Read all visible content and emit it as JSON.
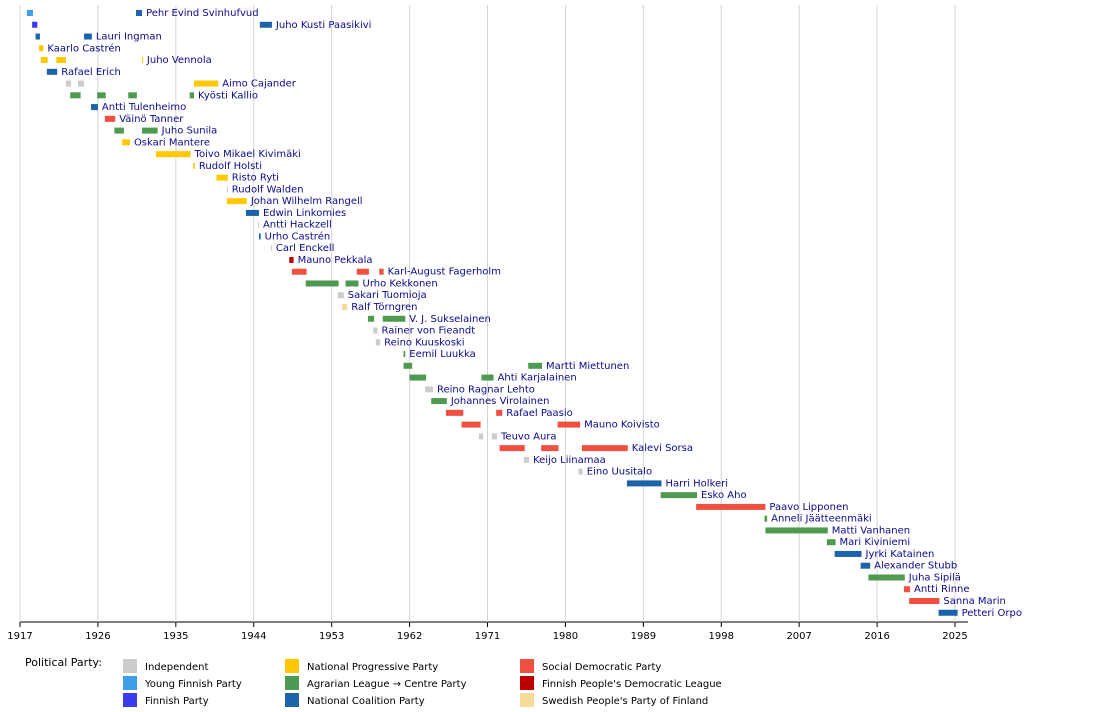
{
  "chart_data": {
    "type": "timeline",
    "xlim": [
      1917,
      2026.5
    ],
    "xticks": [
      1917,
      1926,
      1935,
      1944,
      1953,
      1962,
      1971,
      1980,
      1989,
      1998,
      2007,
      2016,
      2025
    ],
    "grid": true,
    "legend_title": "Political Party:",
    "parties": [
      {
        "name": "Independent",
        "color": "#cccccc"
      },
      {
        "name": "Young Finnish Party",
        "color": "#3d9ee9"
      },
      {
        "name": "Finnish Party",
        "color": "#3a3aee"
      },
      {
        "name": "National Progressive Party",
        "color": "#ffc800"
      },
      {
        "name": "Agrarian League → Centre Party",
        "color": "#4e9a50"
      },
      {
        "name": "National Coalition Party",
        "color": "#1c64aa"
      },
      {
        "name": "Social Democratic Party",
        "color": "#f05040"
      },
      {
        "name": "Finnish People's Democratic League",
        "color": "#bb0000"
      },
      {
        "name": "Swedish People's Party of Finland",
        "color": "#f6dc98"
      }
    ],
    "rows": [
      {
        "name": "Pehr Evind Svinhufvud",
        "terms": [
          [
            1917.8,
            1918.5,
            1
          ],
          [
            1930.4,
            1931.1,
            5
          ]
        ]
      },
      {
        "name": "Juho Kusti Paasikivi",
        "terms": [
          [
            1918.4,
            1919.0,
            2
          ],
          [
            1944.7,
            1946.1,
            5
          ]
        ]
      },
      {
        "name": "Lauri Ingman",
        "terms": [
          [
            1918.8,
            1919.3,
            5
          ],
          [
            1924.4,
            1925.3,
            5
          ]
        ]
      },
      {
        "name": "Kaarlo Castrén",
        "terms": [
          [
            1919.2,
            1919.7,
            3
          ]
        ]
      },
      {
        "name": "Juho Vennola",
        "terms": [
          [
            1919.4,
            1920.2,
            3
          ],
          [
            1921.2,
            1922.3,
            3
          ],
          [
            1931.1,
            1931.2,
            3
          ]
        ]
      },
      {
        "name": "Rafael Erich",
        "terms": [
          [
            1920.1,
            1921.3,
            5
          ]
        ]
      },
      {
        "name": "Aimo Cajander",
        "terms": [
          [
            1922.3,
            1922.9,
            0
          ],
          [
            1923.7,
            1924.4,
            0
          ],
          [
            1937.1,
            1939.9,
            3
          ]
        ]
      },
      {
        "name": "Kyösti Kallio",
        "terms": [
          [
            1922.8,
            1924.0,
            4
          ],
          [
            1925.9,
            1926.9,
            4
          ],
          [
            1929.5,
            1930.5,
            4
          ],
          [
            1936.6,
            1937.1,
            4
          ]
        ]
      },
      {
        "name": "Antti Tulenheimo",
        "terms": [
          [
            1925.2,
            1926.0,
            5
          ]
        ]
      },
      {
        "name": "Väinö Tanner",
        "terms": [
          [
            1926.8,
            1928.0,
            6
          ]
        ]
      },
      {
        "name": "Juho Sunila",
        "terms": [
          [
            1927.9,
            1929.0,
            4
          ],
          [
            1931.1,
            1932.9,
            4
          ]
        ]
      },
      {
        "name": "Oskari Mantere",
        "terms": [
          [
            1928.8,
            1929.7,
            3
          ]
        ]
      },
      {
        "name": "Toivo Mikael Kivimäki",
        "terms": [
          [
            1932.7,
            1936.7,
            3
          ]
        ]
      },
      {
        "name": "Rudolf Holsti",
        "terms": [
          [
            1937.0,
            1937.2,
            3
          ]
        ]
      },
      {
        "name": "Risto Ryti",
        "terms": [
          [
            1939.7,
            1941.0,
            3
          ]
        ]
      },
      {
        "name": "Rudolf Walden",
        "terms": [
          [
            1940.9,
            1941.0,
            0
          ]
        ]
      },
      {
        "name": "Johan Wilhelm Rangell",
        "terms": [
          [
            1940.9,
            1943.2,
            3
          ]
        ]
      },
      {
        "name": "Edwin Linkomies",
        "terms": [
          [
            1943.1,
            1944.6,
            5
          ]
        ]
      },
      {
        "name": "Antti Hackzell",
        "terms": [
          [
            1944.5,
            1944.6,
            0
          ]
        ]
      },
      {
        "name": "Urho Castrén",
        "terms": [
          [
            1944.6,
            1944.8,
            5
          ]
        ]
      },
      {
        "name": "Carl Enckell",
        "terms": [
          [
            1946.0,
            1946.1,
            0
          ]
        ]
      },
      {
        "name": "Mauno Pekkala",
        "terms": [
          [
            1948.1,
            1948.6,
            7
          ]
        ]
      },
      {
        "name": "Karl-August Fagerholm",
        "terms": [
          [
            1948.4,
            1950.1,
            6
          ],
          [
            1955.9,
            1957.3,
            6
          ],
          [
            1958.5,
            1959.0,
            6
          ]
        ]
      },
      {
        "name": "Urho Kekkonen",
        "terms": [
          [
            1950.0,
            1953.8,
            4
          ],
          [
            1954.6,
            1956.1,
            4
          ]
        ]
      },
      {
        "name": "Sakari Tuomioja",
        "terms": [
          [
            1953.7,
            1954.4,
            0
          ]
        ]
      },
      {
        "name": "Ralf Törngren",
        "terms": [
          [
            1954.2,
            1954.8,
            8
          ]
        ]
      },
      {
        "name": "V. J. Sukselainen",
        "terms": [
          [
            1957.2,
            1957.9,
            4
          ],
          [
            1958.9,
            1961.5,
            4
          ]
        ]
      },
      {
        "name": "Rainer von Fieandt",
        "terms": [
          [
            1957.8,
            1958.3,
            0
          ]
        ]
      },
      {
        "name": "Reino Kuuskoski",
        "terms": [
          [
            1958.1,
            1958.6,
            0
          ]
        ]
      },
      {
        "name": "Eemil Luukka",
        "terms": [
          [
            1961.3,
            1961.5,
            4
          ]
        ]
      },
      {
        "name": "Martti Miettunen",
        "terms": [
          [
            1961.3,
            1962.3,
            4
          ],
          [
            1975.7,
            1977.3,
            4
          ]
        ]
      },
      {
        "name": "Ahti Karjalainen",
        "terms": [
          [
            1962.0,
            1963.9,
            4
          ],
          [
            1970.3,
            1971.7,
            4
          ]
        ]
      },
      {
        "name": "Reino Ragnar Lehto",
        "terms": [
          [
            1963.8,
            1964.7,
            0
          ]
        ]
      },
      {
        "name": "Johannes Virolainen",
        "terms": [
          [
            1964.5,
            1966.3,
            4
          ]
        ]
      },
      {
        "name": "Rafael Paasio",
        "terms": [
          [
            1966.2,
            1968.2,
            6
          ],
          [
            1972.0,
            1972.7,
            6
          ]
        ]
      },
      {
        "name": "Mauno Koivisto",
        "terms": [
          [
            1968.0,
            1970.2,
            6
          ],
          [
            1979.1,
            1981.7,
            6
          ]
        ]
      },
      {
        "name": "Teuvo Aura",
        "terms": [
          [
            1970.0,
            1970.5,
            0
          ],
          [
            1971.5,
            1972.1,
            0
          ]
        ]
      },
      {
        "name": "Kalevi Sorsa",
        "terms": [
          [
            1972.4,
            1975.3,
            6
          ],
          [
            1977.2,
            1979.2,
            6
          ],
          [
            1981.9,
            1987.2,
            6
          ]
        ]
      },
      {
        "name": "Keijo Liinamaa",
        "terms": [
          [
            1975.2,
            1975.8,
            0
          ]
        ]
      },
      {
        "name": "Eino Uusitalo",
        "terms": [
          [
            1981.5,
            1982.0,
            0
          ]
        ]
      },
      {
        "name": "Harri Holkeri",
        "terms": [
          [
            1987.1,
            1991.1,
            5
          ]
        ]
      },
      {
        "name": "Esko Aho",
        "terms": [
          [
            1991.0,
            1995.2,
            4
          ]
        ]
      },
      {
        "name": "Paavo Lipponen",
        "terms": [
          [
            1995.1,
            2003.1,
            6
          ]
        ]
      },
      {
        "name": "Anneli Jäätteenmäki",
        "terms": [
          [
            2003.0,
            2003.3,
            4
          ]
        ]
      },
      {
        "name": "Matti Vanhanen",
        "terms": [
          [
            2003.1,
            2010.3,
            4
          ]
        ]
      },
      {
        "name": "Mari Kiviniemi",
        "terms": [
          [
            2010.2,
            2011.2,
            4
          ]
        ]
      },
      {
        "name": "Jyrki Katainen",
        "terms": [
          [
            2011.1,
            2014.2,
            5
          ]
        ]
      },
      {
        "name": "Alexander Stubb",
        "terms": [
          [
            2014.1,
            2015.2,
            5
          ]
        ]
      },
      {
        "name": "Juha Sipilä",
        "terms": [
          [
            2015.0,
            2019.2,
            4
          ]
        ]
      },
      {
        "name": "Antti Rinne",
        "terms": [
          [
            2019.1,
            2019.8,
            6
          ]
        ]
      },
      {
        "name": "Sanna Marin",
        "terms": [
          [
            2019.7,
            2023.2,
            6
          ]
        ]
      },
      {
        "name": "Petteri Orpo",
        "terms": [
          [
            2023.1,
            2025.3,
            5
          ]
        ]
      }
    ]
  }
}
